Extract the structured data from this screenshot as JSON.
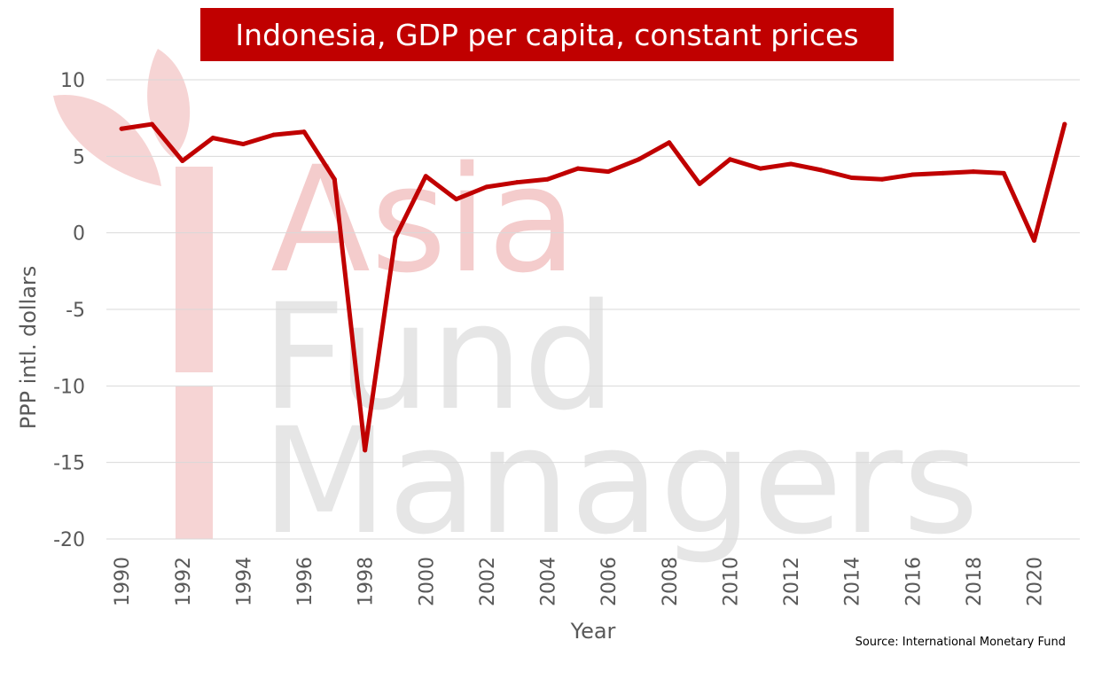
{
  "chart_data": {
    "type": "line",
    "title": "Indonesia, GDP per capita, constant prices",
    "xlabel": "Year",
    "ylabel": "PPP intl. dollars",
    "ylim": [
      -20,
      10
    ],
    "yticks": [
      "10",
      "5",
      "0",
      "-5",
      "-10",
      "-15",
      "-20"
    ],
    "xticks": [
      "1990",
      "1992",
      "1994",
      "1996",
      "1998",
      "2000",
      "2002",
      "2004",
      "2006",
      "2008",
      "2010",
      "2012",
      "2014",
      "2016",
      "2018",
      "2020"
    ],
    "grid": "horizontal",
    "series": [
      {
        "color": "#c00000",
        "x": [
          1990,
          1991,
          1992,
          1993,
          1994,
          1995,
          1996,
          1997,
          1998,
          1999,
          2000,
          2001,
          2002,
          2003,
          2004,
          2005,
          2006,
          2007,
          2008,
          2009,
          2010,
          2011,
          2012,
          2013,
          2014,
          2015,
          2016,
          2017,
          2018,
          2019,
          2020,
          2021
        ],
        "values": [
          6.8,
          7.1,
          4.7,
          6.2,
          5.8,
          6.4,
          6.6,
          3.5,
          -14.2,
          -0.3,
          3.7,
          2.2,
          3.0,
          3.3,
          3.5,
          4.2,
          4.0,
          4.8,
          5.9,
          3.2,
          4.8,
          4.2,
          4.5,
          4.1,
          3.6,
          3.5,
          3.8,
          3.9,
          4.0,
          3.9,
          -0.5,
          7.1
        ]
      }
    ],
    "watermark": [
      "Asia",
      "Fund",
      "Managers"
    ],
    "source": "Source: International Monetary Fund"
  },
  "colors": {
    "line": "#c00000",
    "title_bg": "#c00000",
    "grid": "#d9d9d9",
    "axis_text": "#595959",
    "watermark_red": "#f4cccc",
    "watermark_grey": "#e6e6e6"
  }
}
